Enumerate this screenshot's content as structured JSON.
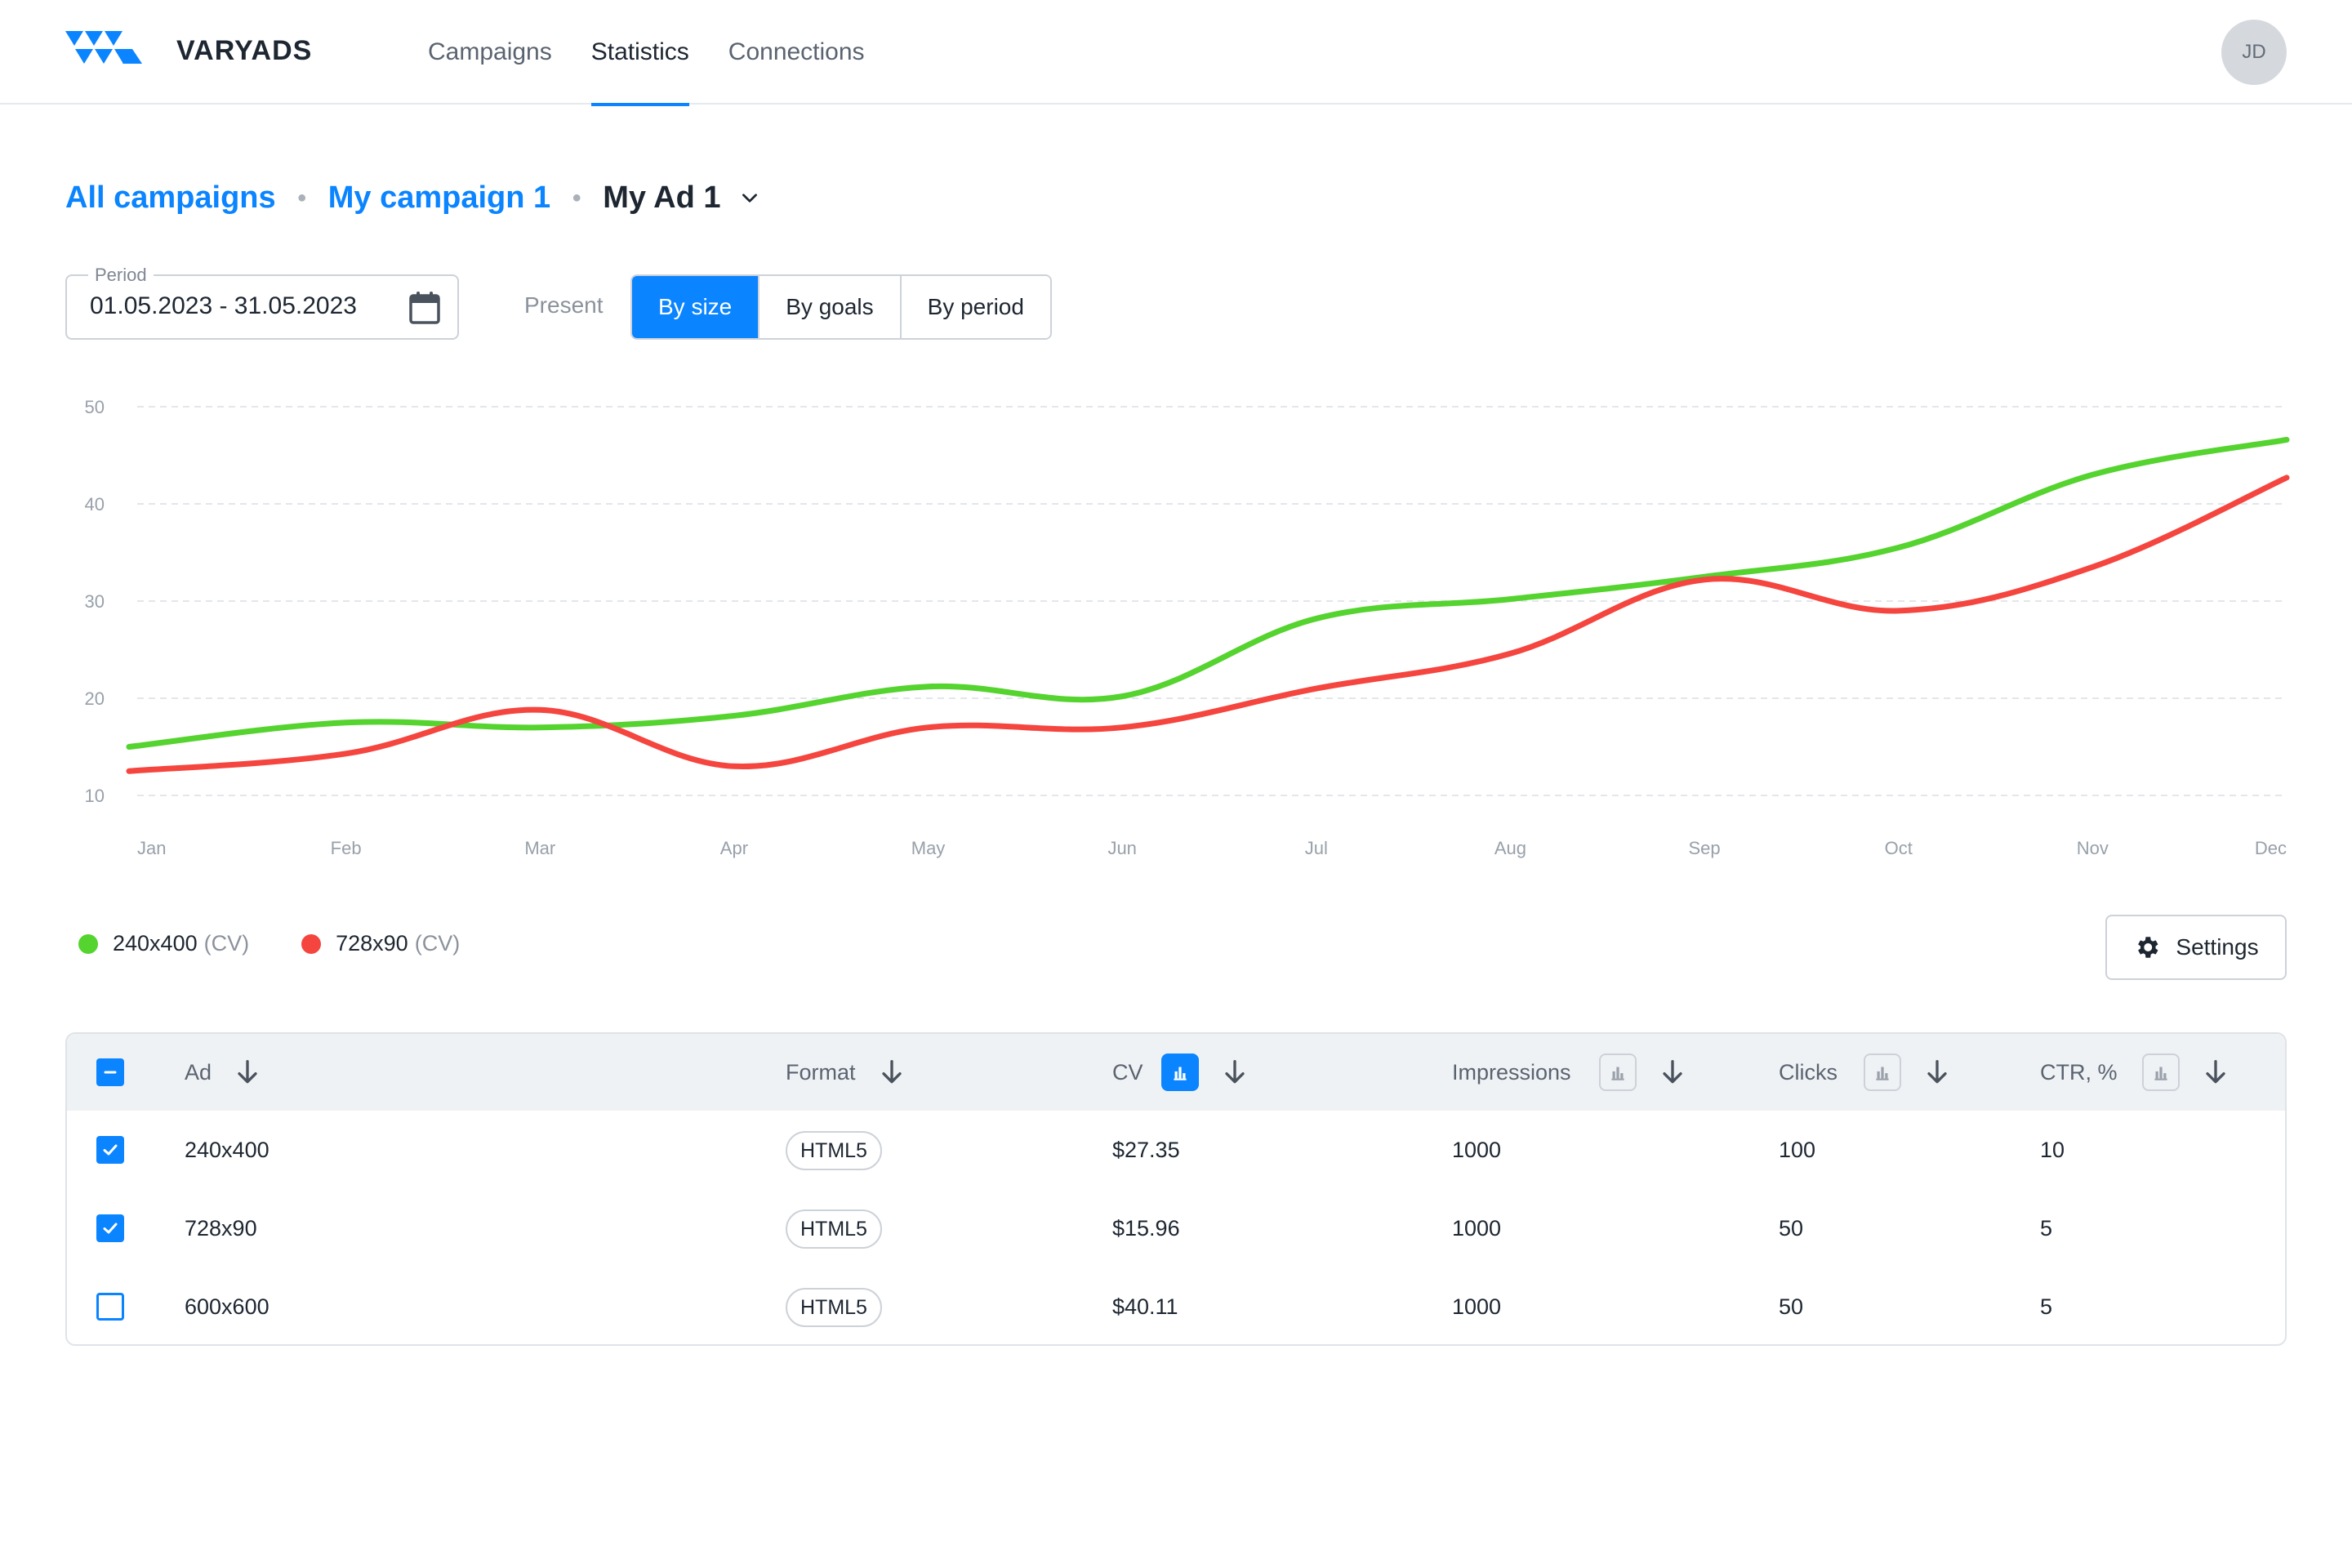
{
  "app": {
    "brand": "VARYADS"
  },
  "nav": {
    "items": [
      "Campaigns",
      "Statistics",
      "Connections"
    ],
    "active": "Statistics"
  },
  "user": {
    "initials": "JD"
  },
  "breadcrumb": {
    "all": "All campaigns",
    "campaign": "My campaign 1",
    "current": "My Ad 1"
  },
  "period": {
    "label": "Period",
    "value": "01.05.2023 - 31.05.2023"
  },
  "present": {
    "label": "Present",
    "options": [
      "By size",
      "By goals",
      "By period"
    ],
    "active": "By size"
  },
  "settings_label": "Settings",
  "legend": [
    {
      "name": "240x400",
      "unit": "(CV)",
      "color": "#55d32f"
    },
    {
      "name": "728x90",
      "unit": "(CV)",
      "color": "#f5453f"
    }
  ],
  "chart_data": {
    "type": "line",
    "categories": [
      "Jan",
      "Feb",
      "Mar",
      "Apr",
      "May",
      "Jun",
      "Jul",
      "Aug",
      "Sep",
      "Oct",
      "Nov",
      "Dec"
    ],
    "y_ticks": [
      50,
      40,
      30,
      20,
      10
    ],
    "ylim": [
      10,
      50
    ],
    "grid": true,
    "legend_position": "bottom-left",
    "series": [
      {
        "name": "240x400 (CV)",
        "color": "#55d32f",
        "values": [
          15,
          17.5,
          17,
          18.2,
          21.2,
          20.2,
          28.2,
          30.2,
          32.5,
          35.5,
          43,
          46.6
        ]
      },
      {
        "name": "728x90 (CV)",
        "color": "#f5453f",
        "values": [
          12.5,
          14.3,
          18.8,
          13,
          17,
          17,
          21,
          24.6,
          32.2,
          29,
          33.5,
          42.7
        ]
      }
    ]
  },
  "table": {
    "headers": {
      "ad": "Ad",
      "format": "Format",
      "cv": "CV",
      "impressions": "Impressions",
      "clicks": "Clicks",
      "ctr": "CTR, %"
    },
    "rows": [
      {
        "checked": true,
        "ad": "240x400",
        "format": "HTML5",
        "cv": "$27.35",
        "impressions": "1000",
        "clicks": "100",
        "ctr": "10"
      },
      {
        "checked": true,
        "ad": "728x90",
        "format": "HTML5",
        "cv": "$15.96",
        "impressions": "1000",
        "clicks": "50",
        "ctr": "5"
      },
      {
        "checked": false,
        "ad": "600x600",
        "format": "HTML5",
        "cv": "$40.11",
        "impressions": "1000",
        "clicks": "50",
        "ctr": "5"
      }
    ]
  },
  "colors": {
    "accent": "#0a84ff",
    "series_green": "#55d32f",
    "series_red": "#f5453f"
  }
}
